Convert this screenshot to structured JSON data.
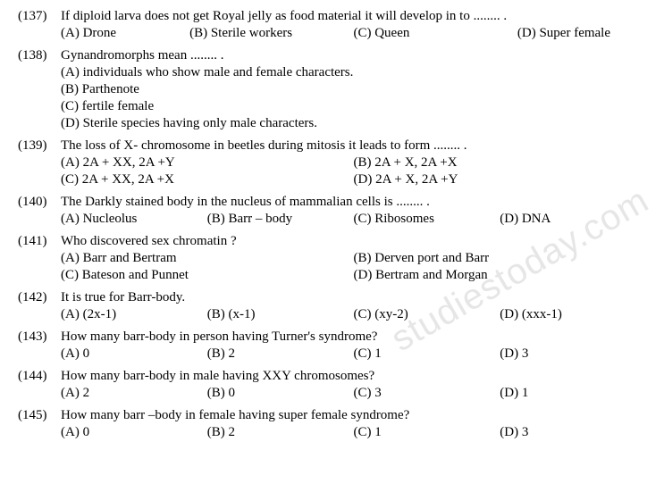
{
  "watermark": "studiestoday.com",
  "questions": [
    {
      "num": "(137)",
      "text": "If diploid larva does not get Royal jelly as food material it will develop in to ........ .",
      "layout": "quarter-mixed",
      "opts": [
        "(A)  Drone",
        "(B)  Sterile workers",
        "(C)  Queen",
        "(D)  Super female"
      ]
    },
    {
      "num": "(138)",
      "text": "Gynandromorphs mean ........ .",
      "layout": "full",
      "opts": [
        "(A)  individuals who show male and female characters.",
        "(B)  Parthenote",
        "(C)  fertile female",
        "(D)  Sterile species having only male characters."
      ]
    },
    {
      "num": "(139)",
      "text": "The loss of X- chromosome in beetles during mitosis it leads to form ........ .",
      "layout": "half",
      "opts": [
        "(A)  2A + XX, 2A +Y",
        "(B)  2A + X, 2A +X",
        "(C)  2A + XX, 2A +X",
        "(D)  2A + X, 2A +Y"
      ]
    },
    {
      "num": "(140)",
      "text": "The Darkly stained body in the nucleus of mammalian cells is ........ .",
      "layout": "quarter",
      "opts": [
        "(A)  Nucleolus",
        "(B)  Barr – body",
        "(C)  Ribosomes",
        "(D)  DNA"
      ]
    },
    {
      "num": "(141)",
      "text": "Who discovered sex chromatin ?",
      "layout": "half",
      "opts": [
        "(A)  Barr and Bertram",
        "(B)  Derven port and Barr",
        "(C)  Bateson and Punnet",
        "(D)  Bertram and Morgan"
      ]
    },
    {
      "num": "(142)",
      "text": "It is true for Barr-body.",
      "layout": "quarter",
      "opts": [
        "(A)  (2x-1)",
        "(B)  (x-1)",
        "(C)  (xy-2)",
        "(D)  (xxx-1)"
      ]
    },
    {
      "num": "(143)",
      "text": "How many barr-body in person having Turner's syndrome?",
      "layout": "quarter",
      "opts": [
        "(A)  0",
        "(B)  2",
        "(C)  1",
        "(D)  3"
      ]
    },
    {
      "num": "(144)",
      "text": "How many barr-body in male having XXY chromosomes?",
      "layout": "quarter",
      "opts": [
        "(A)  2",
        "(B)  0",
        "(C)  3",
        "(D)  1"
      ]
    },
    {
      "num": "(145)",
      "text": "How many barr –body in female having super female syndrome?",
      "layout": "quarter",
      "opts": [
        "(A)  0",
        "(B)  2",
        "(C)  1",
        "(D)  3"
      ]
    }
  ]
}
